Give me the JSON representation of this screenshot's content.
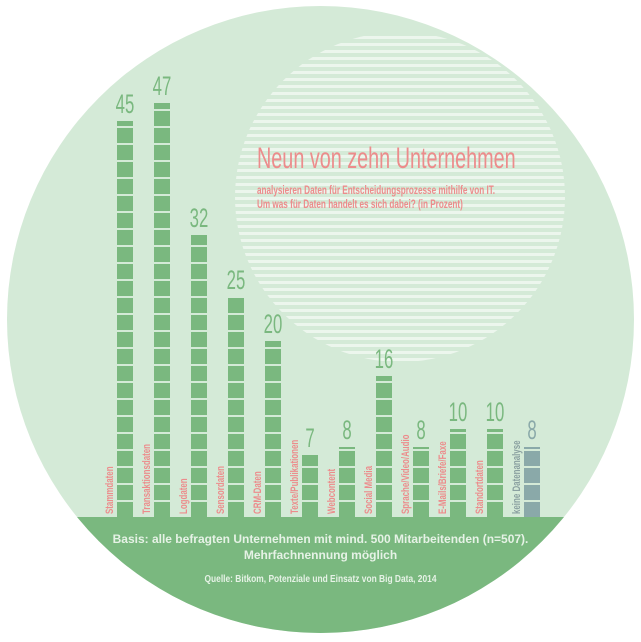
{
  "chart_data": {
    "type": "bar",
    "title": "Neun von zehn Unternehmen",
    "subtitle_lines": [
      "analysieren Daten für Entscheidungsprozesse mithilfe von IT.",
      "Um was für Daten handelt es sich dabei? (in Prozent)"
    ],
    "categories": [
      "Stammdaten",
      "Transaktionsdaten",
      "Logdaten",
      "Sensordaten",
      "CRM-Daten",
      "Texte/Publikationen",
      "Webcontent",
      "Social Media",
      "Sprache/Video/Audio",
      "E-Mails/Briefe/Faxe",
      "Standortdaten",
      "keine Datenanalyse"
    ],
    "values": [
      45,
      47,
      32,
      25,
      20,
      7,
      8,
      16,
      8,
      10,
      10,
      8
    ],
    "value_labels": [
      "45",
      "47",
      "32",
      "25",
      "20",
      "7",
      "8",
      "16",
      "8",
      "10",
      "10",
      "8"
    ],
    "xlabel": "",
    "ylabel": "Prozent",
    "ylim": [
      0,
      50
    ],
    "grid": false,
    "legend": null,
    "colors": {
      "bar": "#7ab87f",
      "bar_no_analysis": "#8aa9a9",
      "label": "#ec8c8c",
      "background": "#d4ead7"
    },
    "footnotes": {
      "basis": "Basis: alle befragten Unternehmen mit mind. 500 Mitarbeitenden (n=507).",
      "basis_line2": "Mehrfachnennung möglich",
      "source": "Quelle: Bitkom, Potenziale und Einsatz von Big Data, 2014"
    }
  }
}
